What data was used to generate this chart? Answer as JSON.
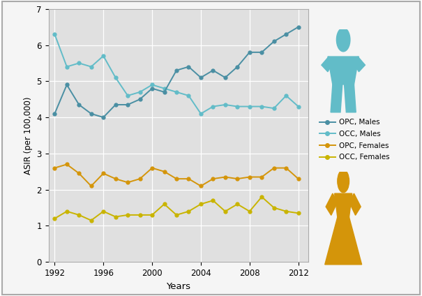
{
  "years": [
    1992,
    1993,
    1994,
    1995,
    1996,
    1997,
    1998,
    1999,
    2000,
    2001,
    2002,
    2003,
    2004,
    2005,
    2006,
    2007,
    2008,
    2009,
    2010,
    2011,
    2012
  ],
  "opc_males": [
    4.1,
    4.9,
    4.35,
    4.1,
    4.0,
    4.35,
    4.35,
    4.5,
    4.8,
    4.7,
    5.3,
    5.4,
    5.1,
    5.3,
    5.1,
    5.4,
    5.8,
    5.8,
    6.1,
    6.3,
    6.5
  ],
  "occ_males": [
    6.3,
    5.4,
    5.5,
    5.4,
    5.7,
    5.1,
    4.6,
    4.7,
    4.9,
    4.8,
    4.7,
    4.6,
    4.1,
    4.3,
    4.35,
    4.3,
    4.3,
    4.3,
    4.25,
    4.6,
    4.3
  ],
  "opc_females": [
    2.6,
    2.7,
    2.45,
    2.1,
    2.45,
    2.3,
    2.2,
    2.3,
    2.6,
    2.5,
    2.3,
    2.3,
    2.1,
    2.3,
    2.35,
    2.3,
    2.35,
    2.35,
    2.6,
    2.6,
    2.3
  ],
  "occ_females": [
    1.2,
    1.4,
    1.3,
    1.15,
    1.4,
    1.25,
    1.3,
    1.3,
    1.3,
    1.6,
    1.3,
    1.4,
    1.6,
    1.7,
    1.4,
    1.6,
    1.4,
    1.8,
    1.5,
    1.4,
    1.35
  ],
  "opc_males_color": "#4a8fa3",
  "occ_males_color": "#62bcc8",
  "opc_females_color": "#d4950a",
  "occ_females_color": "#c9b400",
  "plot_bg_color": "#e0e0e0",
  "fig_bg_color": "#f5f5f5",
  "grid_color": "#ffffff",
  "border_color": "#aaaaaa",
  "ylim": [
    0,
    7
  ],
  "yticks": [
    0,
    1,
    2,
    3,
    4,
    5,
    6,
    7
  ],
  "xlabel": "Years",
  "ylabel": "ASIR (per 100,000)",
  "xticks": [
    1992,
    1996,
    2000,
    2004,
    2008,
    2012
  ],
  "legend_labels": [
    "OPC, Males",
    "OCC, Males",
    "OPC, Females",
    "OCC, Females"
  ],
  "male_icon_color": "#62bcc8",
  "female_icon_color": "#d4950a"
}
